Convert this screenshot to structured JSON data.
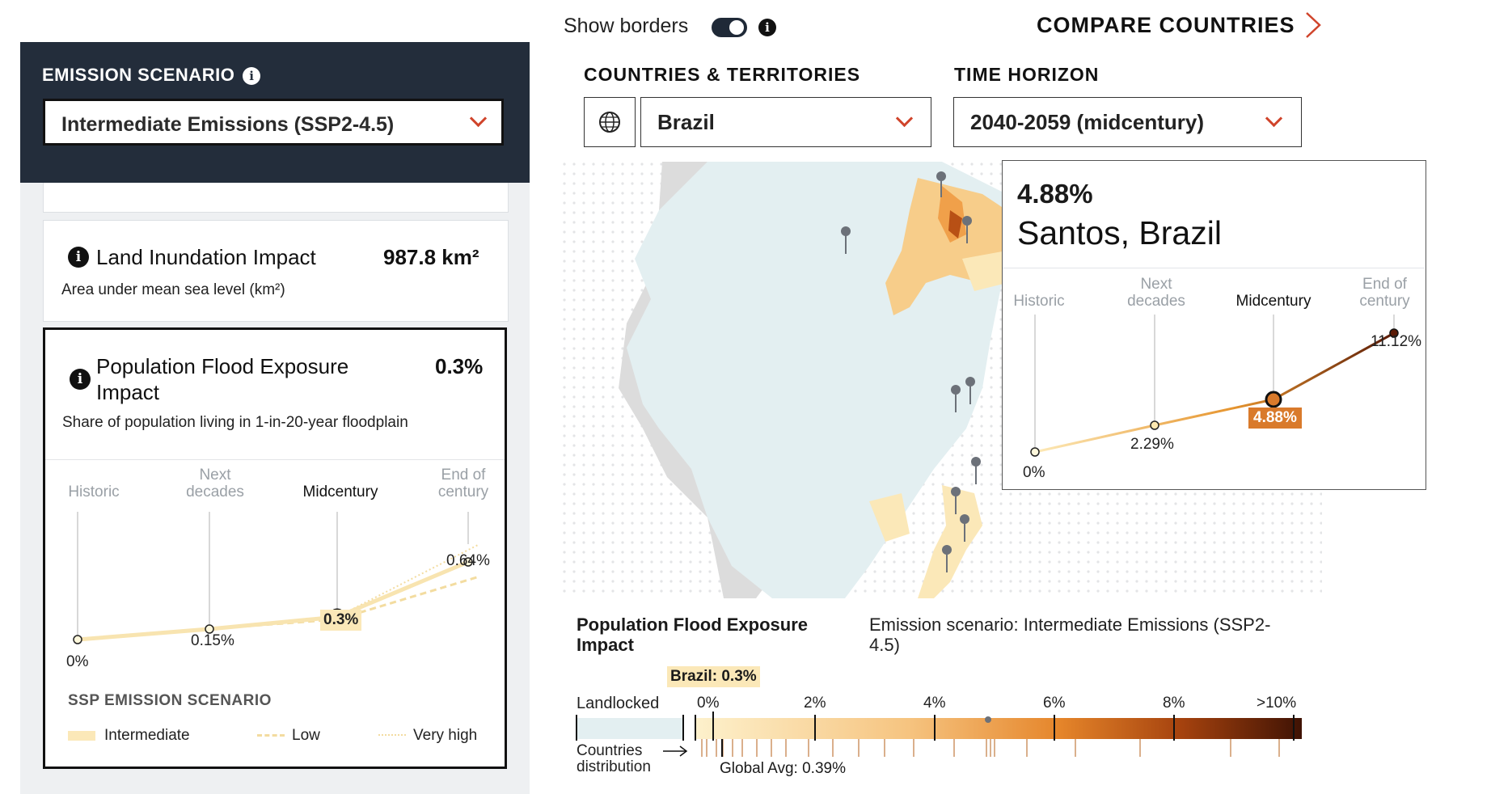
{
  "left_panel": {
    "scenario_title": "EMISSION SCENARIO",
    "scenario_selected": "Intermediate Emissions (SSP2-4.5)",
    "land": {
      "title": "Land Inundation Impact",
      "value": "987.8 km²",
      "subtitle": "Area under mean sea level (km²)"
    },
    "pop": {
      "title_line1": "Population Flood Exposure",
      "title_line2": "Impact",
      "value": "0.3%",
      "subtitle": "Share of population living in 1-in-20-year floodplain",
      "timeline": {
        "historic": "Historic",
        "next1": "Next",
        "next2": "decades",
        "mid": "Midcentury",
        "end1": "End of",
        "end2": "century"
      },
      "points": {
        "historic": "0%",
        "next": "0.15%",
        "mid": "0.3%",
        "end": "0.64%"
      },
      "legend_title": "SSP EMISSION SCENARIO",
      "legend": {
        "intermediate": "Intermediate",
        "low": "Low",
        "very_high": "Very high"
      }
    }
  },
  "top_bar": {
    "show_borders": "Show borders",
    "compare": "COMPARE COUNTRIES",
    "countries_label": "COUNTRIES & TERRITORIES",
    "country_selected": "Brazil",
    "time_label": "TIME HORIZON",
    "time_selected": "2040-2059 (midcentury)"
  },
  "tooltip": {
    "value": "4.88%",
    "place": "Santos, Brazil",
    "timeline": {
      "historic": "Historic",
      "next1": "Next",
      "next2": "decades",
      "mid": "Midcentury",
      "end1": "End of",
      "end2": "century"
    },
    "points": {
      "historic": "0%",
      "next": "2.29%",
      "mid": "4.88%",
      "end": "11.12%"
    }
  },
  "bottom_legend": {
    "title_line1": "Population Flood Exposure",
    "title_line2": "Impact",
    "scenario_line1": "Emission scenario: Intermediate Emissions (SSP2-",
    "scenario_line2": "4.5)",
    "brazil_marker": "Brazil: 0.3%",
    "landlocked": "Landlocked",
    "ticks": [
      "0%",
      "2%",
      "4%",
      "6%",
      "8%",
      ">10%"
    ],
    "dist_line1": "Countries",
    "dist_line2": "distribution",
    "global_avg": "Global Avg: 0.39%"
  },
  "colors": {
    "dark_navy": "#232d3b",
    "accent_red": "#d0442b",
    "midcentury_orange": "#d97a2b",
    "light_yellow": "#fbe8b8",
    "dark_brown": "#5a1a06",
    "land_bg": "#e3eff1"
  }
}
